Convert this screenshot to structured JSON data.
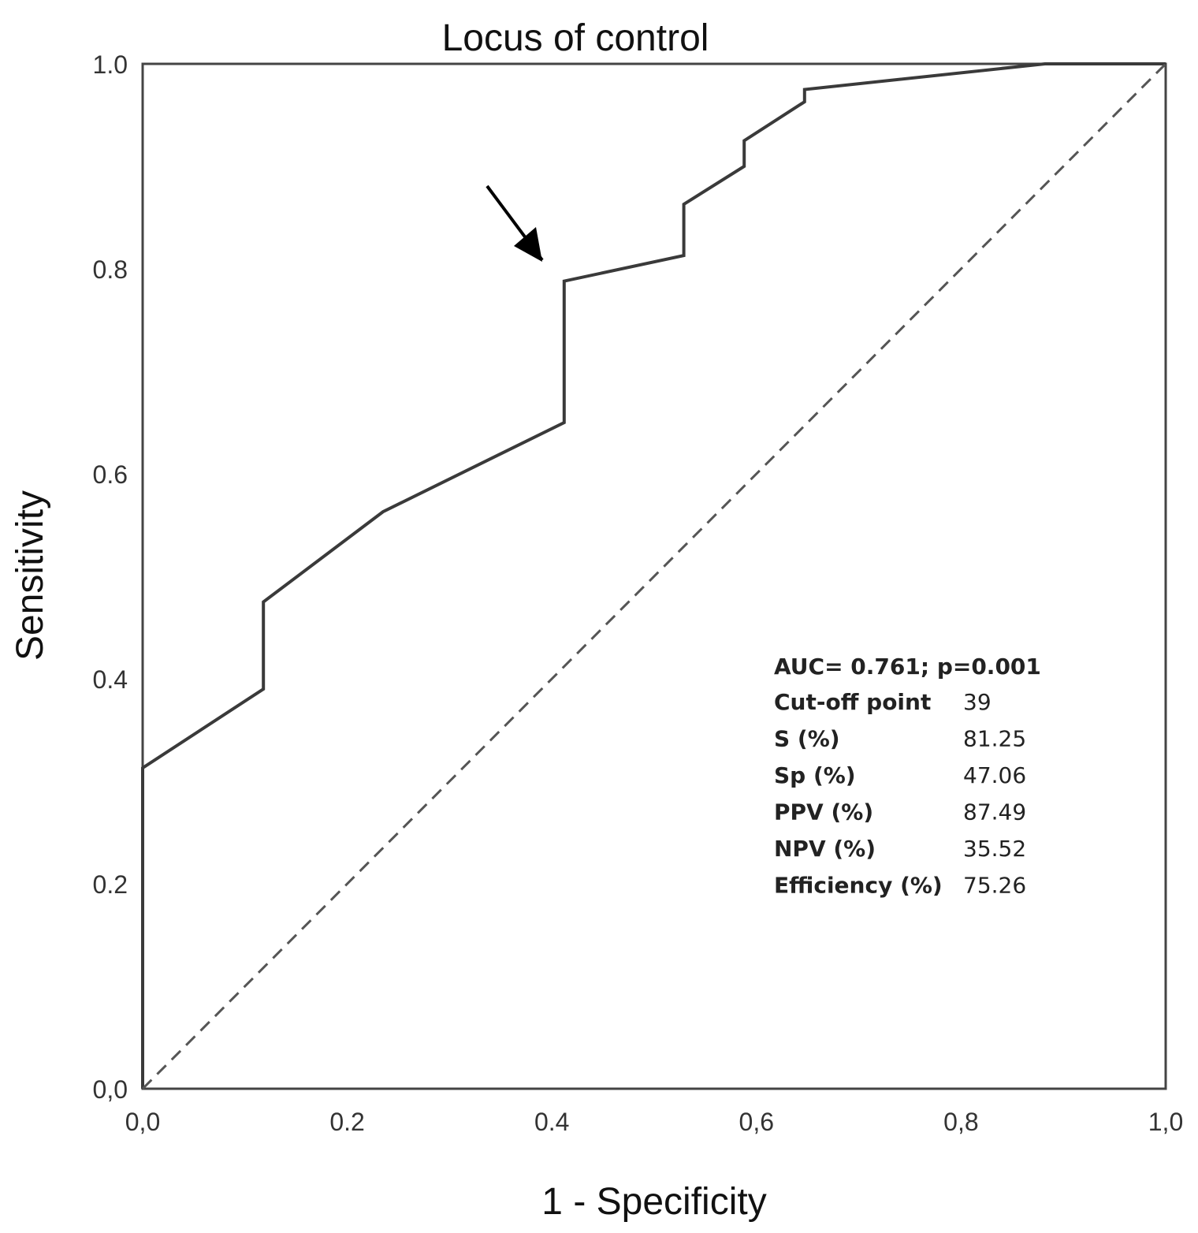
{
  "chart_data": {
    "type": "line",
    "title": "Locus of control",
    "xlabel": "1 - Specificity",
    "ylabel": "Sensitivity",
    "xlim": [
      0,
      1
    ],
    "ylim": [
      0,
      1
    ],
    "x_ticks": [
      "0,0",
      "0.2",
      "0.4",
      "0,6",
      "0,8",
      "1,0"
    ],
    "y_ticks": [
      "0,0",
      "0.2",
      "0.4",
      "0.6",
      "0.8",
      "1.0"
    ],
    "series": [
      {
        "name": "ROC curve",
        "style": "solid",
        "x": [
          0,
          0,
          0.118,
          0.118,
          0.235,
          0.412,
          0.412,
          0.529,
          0.529,
          0.588,
          0.588,
          0.647,
          0.647,
          0.882,
          1.0
        ],
        "y": [
          0,
          0.313,
          0.39,
          0.475,
          0.563,
          0.65,
          0.788,
          0.813,
          0.863,
          0.9,
          0.925,
          0.963,
          0.975,
          1.0,
          1.0
        ]
      },
      {
        "name": "Reference line",
        "style": "dashed",
        "x": [
          0,
          1
        ],
        "y": [
          0,
          1
        ]
      }
    ],
    "annotation_arrow": {
      "points_to_x": 0.4,
      "points_to_y": 0.815
    },
    "stats": {
      "auc_line": "AUC= 0.761; p=0.001",
      "rows": [
        {
          "label": "Cut-off point",
          "value": "39"
        },
        {
          "label": "S (%)",
          "value": "81.25"
        },
        {
          "label": "Sp (%)",
          "value": "47.06"
        },
        {
          "label": "PPV (%)",
          "value": "87.49"
        },
        {
          "label": "NPV (%)",
          "value": "35.52"
        },
        {
          "label": "Efficiency (%)",
          "value": "75.26"
        }
      ]
    },
    "colors": {
      "line": "#3a3a3a",
      "frame": "#444444",
      "text": "#111111"
    }
  }
}
